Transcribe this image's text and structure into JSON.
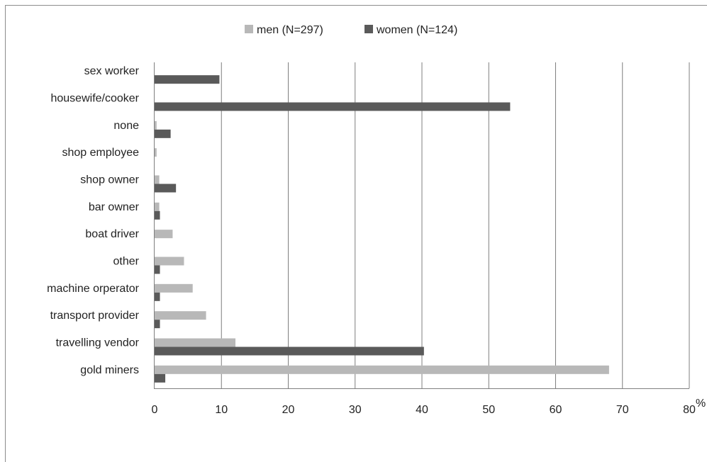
{
  "chart_data": {
    "type": "bar",
    "orientation": "horizontal",
    "categories": [
      "sex worker",
      "housewife/cooker",
      "none",
      "shop employee",
      "shop owner",
      "bar owner",
      "boat driver",
      "other",
      "machine orperator",
      "transport provider",
      "travelling vendor",
      "gold miners"
    ],
    "series": [
      {
        "name": "men (N=297)",
        "color": "#b8b8b8",
        "values": [
          0,
          0,
          0.3,
          0.3,
          0.7,
          0.7,
          2.7,
          4.4,
          5.7,
          7.7,
          12.1,
          68.0
        ]
      },
      {
        "name": "women (N=124)",
        "color": "#5a5a5a",
        "values": [
          9.7,
          53.2,
          2.4,
          0,
          3.2,
          0.8,
          0,
          0.8,
          0.8,
          0.8,
          40.3,
          1.6
        ]
      }
    ],
    "xlim": [
      0,
      80
    ],
    "xticks": [
      "0",
      "10",
      "20",
      "30",
      "40",
      "50",
      "60",
      "70",
      "80"
    ],
    "xunit": "%",
    "grid": "vertical",
    "legend_position": "top"
  }
}
